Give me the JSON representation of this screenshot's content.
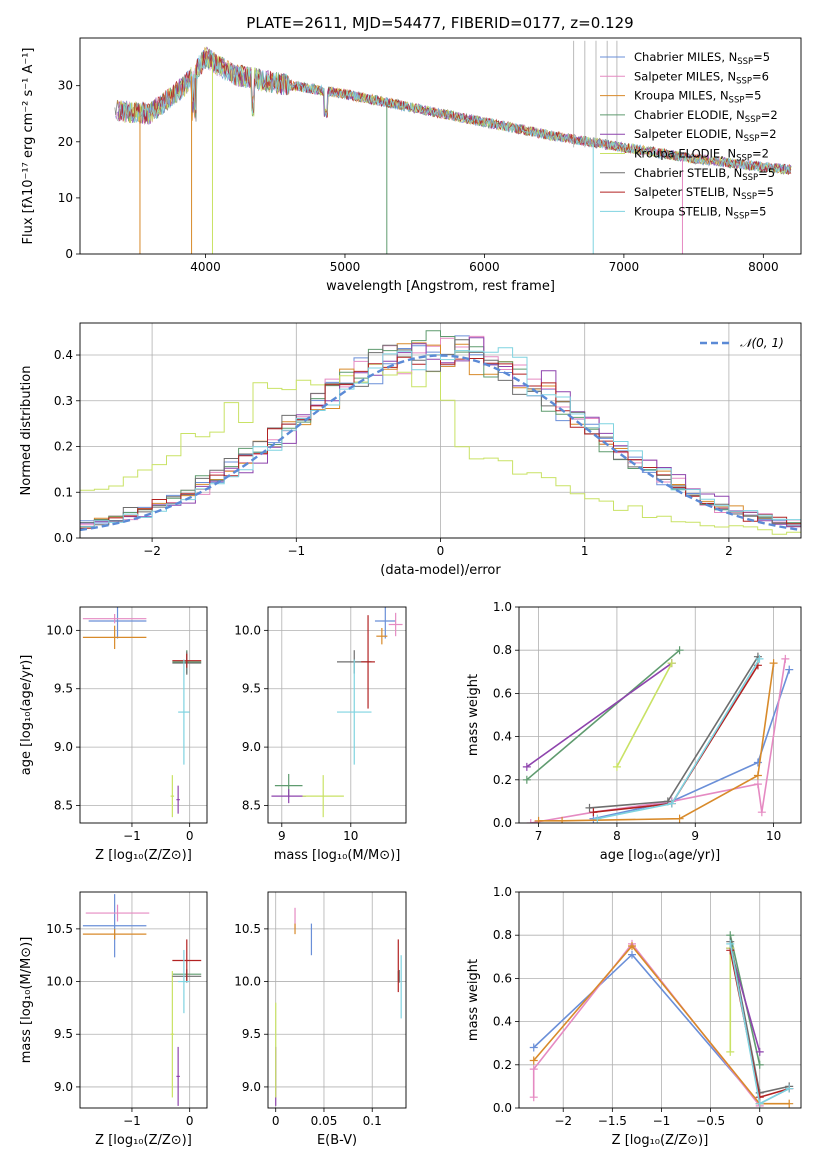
{
  "figure_title": "PLATE=2611, MJD=54477, FIBERID=0177, z=0.129",
  "colors": [
    "#6a8fd8",
    "#e58ac2",
    "#d88a2a",
    "#5f9b6f",
    "#8e44ad",
    "#c9e265",
    "#6e6e6e",
    "#b22222",
    "#7fd3e0"
  ],
  "legend": [
    {
      "pre": "Chabrier MILES, N",
      "sub": "SSP",
      "post": "=5"
    },
    {
      "pre": "Salpeter MILES, N",
      "sub": "SSP",
      "post": "=6"
    },
    {
      "pre": "Kroupa MILES, N",
      "sub": "SSP",
      "post": "=5"
    },
    {
      "pre": "Chabrier ELODIE, N",
      "sub": "SSP",
      "post": "=2"
    },
    {
      "pre": "Salpeter ELODIE, N",
      "sub": "SSP",
      "post": "=2"
    },
    {
      "pre": "Kroupa ELODIE, N",
      "sub": "SSP",
      "post": "=2"
    },
    {
      "pre": "Chabrier STELIB, N",
      "sub": "SSP",
      "post": "=5"
    },
    {
      "pre": "Salpeter STELIB, N",
      "sub": "SSP",
      "post": "=5"
    },
    {
      "pre": "Kroupa STELIB, N",
      "sub": "SSP",
      "post": "=5"
    }
  ],
  "chart_data": [
    {
      "id": "spectrum",
      "type": "line",
      "xlabel": "wavelength [Angstrom, rest frame]",
      "ylabel": "Flux [fλ10⁻¹⁷ erg cm⁻² s⁻¹ A⁻¹]",
      "xlim": [
        3100,
        8270
      ],
      "ylim": [
        0,
        38.5
      ],
      "xticks": [
        4000,
        5000,
        6000,
        7000,
        8000
      ],
      "yticks": [
        0,
        10,
        20,
        30
      ],
      "continuum": [
        [
          3350,
          25.5
        ],
        [
          3600,
          25
        ],
        [
          3850,
          30
        ],
        [
          4000,
          35
        ],
        [
          4200,
          32
        ],
        [
          4500,
          30.5
        ],
        [
          5000,
          28.5
        ],
        [
          5500,
          26
        ],
        [
          6000,
          23.5
        ],
        [
          6500,
          21
        ],
        [
          7000,
          19
        ],
        [
          7500,
          17
        ],
        [
          8000,
          15.5
        ],
        [
          8200,
          15
        ]
      ],
      "dips": [
        [
          3530,
          0
        ],
        [
          3900,
          0
        ],
        [
          4050,
          0
        ],
        [
          5300,
          0
        ],
        [
          6780,
          0
        ],
        [
          7420,
          0
        ]
      ],
      "legend_position": "upper-right"
    },
    {
      "id": "residuals",
      "type": "histogram",
      "xlabel": "(data-model)/error",
      "ylabel": "Normed distribution",
      "xlim": [
        -2.5,
        2.5
      ],
      "ylim": [
        0,
        0.47
      ],
      "xticks": [
        -2,
        -1,
        0,
        1,
        2
      ],
      "yticks": [
        0.0,
        0.1,
        0.2,
        0.3,
        0.4
      ],
      "reference_label": "𝒩(0, 1)",
      "reference": {
        "mean": 0,
        "sigma": 1
      },
      "legend_position": "upper-right",
      "bin_width": 0.1,
      "kroupa_elodie_approx": {
        "mean": -0.55,
        "sigma": 1.1
      }
    },
    {
      "id": "age_vs_Z",
      "type": "errorbar",
      "xlabel": "Z [log₁₀(Z/Z⊙)]",
      "ylabel": "age  [log₁₀(age/yr)]",
      "xlim": [
        -1.9,
        0.3
      ],
      "ylim": [
        8.35,
        10.2
      ],
      "xticks": [
        -1,
        0
      ],
      "yticks": [
        8.5,
        9.0,
        9.5,
        10.0
      ],
      "points": [
        {
          "s": 0,
          "x": -1.25,
          "y": 10.08,
          "xe": 0.5,
          "ye": 0.15
        },
        {
          "s": 1,
          "x": -1.3,
          "y": 10.1,
          "xe": 0.55,
          "ye": 0.04
        },
        {
          "s": 2,
          "x": -1.3,
          "y": 9.94,
          "xe": 0.55,
          "ye": 0.1
        },
        {
          "s": 3,
          "x": -0.05,
          "y": 9.73,
          "xe": 0.25,
          "ye": 0.1
        },
        {
          "s": 4,
          "x": -0.2,
          "y": 8.55,
          "xe": 0.03,
          "ye": 0.12
        },
        {
          "s": 5,
          "x": -0.3,
          "y": 8.58,
          "xe": 0.03,
          "ye": 0.18
        },
        {
          "s": 6,
          "x": -0.05,
          "y": 9.72,
          "xe": 0.25,
          "ye": 0.1
        },
        {
          "s": 7,
          "x": -0.05,
          "y": 9.74,
          "xe": 0.25,
          "ye": 0.06
        },
        {
          "s": 8,
          "x": -0.1,
          "y": 9.3,
          "xe": 0.1,
          "ye": 0.45
        }
      ]
    },
    {
      "id": "age_vs_mass",
      "type": "errorbar",
      "xlabel": "mass [log₁₀(M/M⊙)]",
      "ylabel": "",
      "xlim": [
        8.8,
        10.8
      ],
      "ylim": [
        8.35,
        10.2
      ],
      "xticks": [
        9,
        10
      ],
      "yticks": [
        8.5,
        9.0,
        9.5,
        10.0
      ],
      "points": [
        {
          "s": 0,
          "x": 10.5,
          "y": 10.08,
          "xe": 0.15,
          "ye": 0.15
        },
        {
          "s": 1,
          "x": 10.65,
          "y": 10.05,
          "xe": 0.1,
          "ye": 0.1
        },
        {
          "s": 2,
          "x": 10.45,
          "y": 9.95,
          "xe": 0.08,
          "ye": 0.07
        },
        {
          "s": 3,
          "x": 9.1,
          "y": 8.67,
          "xe": 0.2,
          "ye": 0.1
        },
        {
          "s": 4,
          "x": 9.1,
          "y": 8.58,
          "xe": 0.25,
          "ye": 0.06
        },
        {
          "s": 5,
          "x": 9.6,
          "y": 8.58,
          "xe": 0.3,
          "ye": 0.18
        },
        {
          "s": 6,
          "x": 10.05,
          "y": 9.73,
          "xe": 0.25,
          "ye": 0.1
        },
        {
          "s": 7,
          "x": 10.25,
          "y": 9.73,
          "xe": 0.1,
          "ye": 0.4
        },
        {
          "s": 8,
          "x": 10.05,
          "y": 9.3,
          "xe": 0.25,
          "ye": 0.45
        }
      ]
    },
    {
      "id": "weight_vs_age",
      "type": "line",
      "xlabel": "age  [log₁₀(age/yr)]",
      "ylabel": "mass weight",
      "xlim": [
        6.75,
        10.35
      ],
      "ylim": [
        0,
        1
      ],
      "xticks": [
        7,
        8,
        9,
        10
      ],
      "yticks": [
        0.0,
        0.2,
        0.4,
        0.6,
        0.8,
        1.0
      ],
      "series": [
        {
          "s": 0,
          "x": [
            7.7,
            8.7,
            9.8,
            10.2
          ],
          "y": [
            0.02,
            0.1,
            0.28,
            0.71
          ]
        },
        {
          "s": 1,
          "x": [
            6.9,
            7.7,
            8.7,
            9.8,
            9.85,
            10.15
          ],
          "y": [
            0.0,
            0.05,
            0.1,
            0.18,
            0.05,
            0.76
          ]
        },
        {
          "s": 2,
          "x": [
            7.0,
            7.3,
            8.8,
            9.8,
            10.0
          ],
          "y": [
            0.01,
            0.01,
            0.02,
            0.22,
            0.74
          ]
        },
        {
          "s": 3,
          "x": [
            6.85,
            8.8
          ],
          "y": [
            0.2,
            0.8
          ]
        },
        {
          "s": 4,
          "x": [
            6.85,
            8.7
          ],
          "y": [
            0.26,
            0.74
          ]
        },
        {
          "s": 5,
          "x": [
            8.0,
            8.7
          ],
          "y": [
            0.26,
            0.74
          ]
        },
        {
          "s": 6,
          "x": [
            7.65,
            8.65,
            9.8
          ],
          "y": [
            0.07,
            0.1,
            0.77
          ]
        },
        {
          "s": 7,
          "x": [
            7.7,
            8.7,
            9.8
          ],
          "y": [
            0.05,
            0.09,
            0.73
          ]
        },
        {
          "s": 8,
          "x": [
            7.75,
            8.7,
            9.82
          ],
          "y": [
            0.02,
            0.09,
            0.76
          ]
        }
      ]
    },
    {
      "id": "mass_vs_Z",
      "type": "errorbar",
      "xlabel": "Z [log₁₀(Z/Z⊙)]",
      "ylabel": "mass [log₁₀(M/M⊙)]",
      "xlim": [
        -1.9,
        0.3
      ],
      "ylim": [
        8.8,
        10.85
      ],
      "xticks": [
        -1,
        0
      ],
      "yticks": [
        9.0,
        9.5,
        10.0,
        10.5
      ],
      "points": [
        {
          "s": 0,
          "x": -1.3,
          "y": 10.53,
          "xe": 0.55,
          "ye": 0.3
        },
        {
          "s": 1,
          "x": -1.25,
          "y": 10.65,
          "xe": 0.55,
          "ye": 0.08
        },
        {
          "s": 2,
          "x": -1.3,
          "y": 10.45,
          "xe": 0.55,
          "ye": 0.05
        },
        {
          "s": 3,
          "x": -0.05,
          "y": 10.07,
          "xe": 0.25,
          "ye": 0.05
        },
        {
          "s": 4,
          "x": -0.2,
          "y": 9.1,
          "xe": 0.03,
          "ye": 0.28
        },
        {
          "s": 5,
          "x": -0.3,
          "y": 9.5,
          "xe": 0.03,
          "ye": 0.6
        },
        {
          "s": 6,
          "x": -0.05,
          "y": 10.05,
          "xe": 0.25,
          "ye": 0.06
        },
        {
          "s": 7,
          "x": -0.05,
          "y": 10.2,
          "xe": 0.25,
          "ye": 0.2
        },
        {
          "s": 8,
          "x": -0.1,
          "y": 10.0,
          "xe": 0.1,
          "ye": 0.3
        }
      ]
    },
    {
      "id": "mass_vs_EBV",
      "type": "errorbar",
      "xlabel": "E(B-V)",
      "ylabel": "",
      "xlim": [
        -0.008,
        0.135
      ],
      "ylim": [
        8.8,
        10.85
      ],
      "xticks": [
        0.0,
        0.05,
        0.1
      ],
      "yticks": [
        9.0,
        9.5,
        10.0,
        10.5
      ],
      "points": [
        {
          "s": 0,
          "x": 0.037,
          "y": 10.4,
          "xe": 0,
          "ye": 0.15
        },
        {
          "s": 1,
          "x": 0.02,
          "y": 10.6,
          "xe": 0,
          "ye": 0.1
        },
        {
          "s": 2,
          "x": 0.02,
          "y": 10.5,
          "xe": 0,
          "ye": 0.05
        },
        {
          "s": 3,
          "x": 0.127,
          "y": 10.05,
          "xe": 0,
          "ye": 0.05
        },
        {
          "s": 4,
          "x": 0.0,
          "y": 9.1,
          "xe": 0,
          "ye": 0.28
        },
        {
          "s": 5,
          "x": 0.0,
          "y": 9.35,
          "xe": 0,
          "ye": 0.45
        },
        {
          "s": 6,
          "x": 0.128,
          "y": 10.05,
          "xe": 0,
          "ye": 0.06
        },
        {
          "s": 7,
          "x": 0.127,
          "y": 10.15,
          "xe": 0,
          "ye": 0.25
        },
        {
          "s": 8,
          "x": 0.13,
          "y": 9.95,
          "xe": 0,
          "ye": 0.3
        }
      ]
    },
    {
      "id": "weight_vs_Z",
      "type": "line",
      "xlabel": "Z [log₁₀(Z/Z⊙)]",
      "ylabel": "mass weight",
      "xlim": [
        -2.45,
        0.42
      ],
      "ylim": [
        0,
        1
      ],
      "xticks": [
        -2.0,
        -1.5,
        -1.0,
        -0.5,
        0.0
      ],
      "yticks": [
        0.0,
        0.2,
        0.4,
        0.6,
        0.8,
        1.0
      ],
      "series": [
        {
          "s": 0,
          "x": [
            -2.3,
            -1.3,
            0.0,
            0.3
          ],
          "y": [
            0.28,
            0.71,
            0.02,
            0.09
          ]
        },
        {
          "s": 1,
          "x": [
            -2.3,
            -2.3,
            -1.3,
            0.0
          ],
          "y": [
            0.05,
            0.18,
            0.76,
            0.01
          ]
        },
        {
          "s": 2,
          "x": [
            -2.3,
            -1.3,
            0.0,
            0.3
          ],
          "y": [
            0.22,
            0.75,
            0.02,
            0.02
          ]
        },
        {
          "s": 3,
          "x": [
            -0.3,
            0.0
          ],
          "y": [
            0.8,
            0.2
          ]
        },
        {
          "s": 4,
          "x": [
            -0.3,
            0.0
          ],
          "y": [
            0.74,
            0.26
          ]
        },
        {
          "s": 5,
          "x": [
            -0.3,
            -0.3
          ],
          "y": [
            0.74,
            0.26
          ]
        },
        {
          "s": 6,
          "x": [
            -0.3,
            0.0,
            0.3
          ],
          "y": [
            0.77,
            0.07,
            0.1
          ]
        },
        {
          "s": 7,
          "x": [
            -0.3,
            0.0,
            0.3
          ],
          "y": [
            0.73,
            0.05,
            0.09
          ]
        },
        {
          "s": 8,
          "x": [
            -0.3,
            0.0,
            0.3
          ],
          "y": [
            0.76,
            0.02,
            0.09
          ]
        }
      ]
    }
  ]
}
